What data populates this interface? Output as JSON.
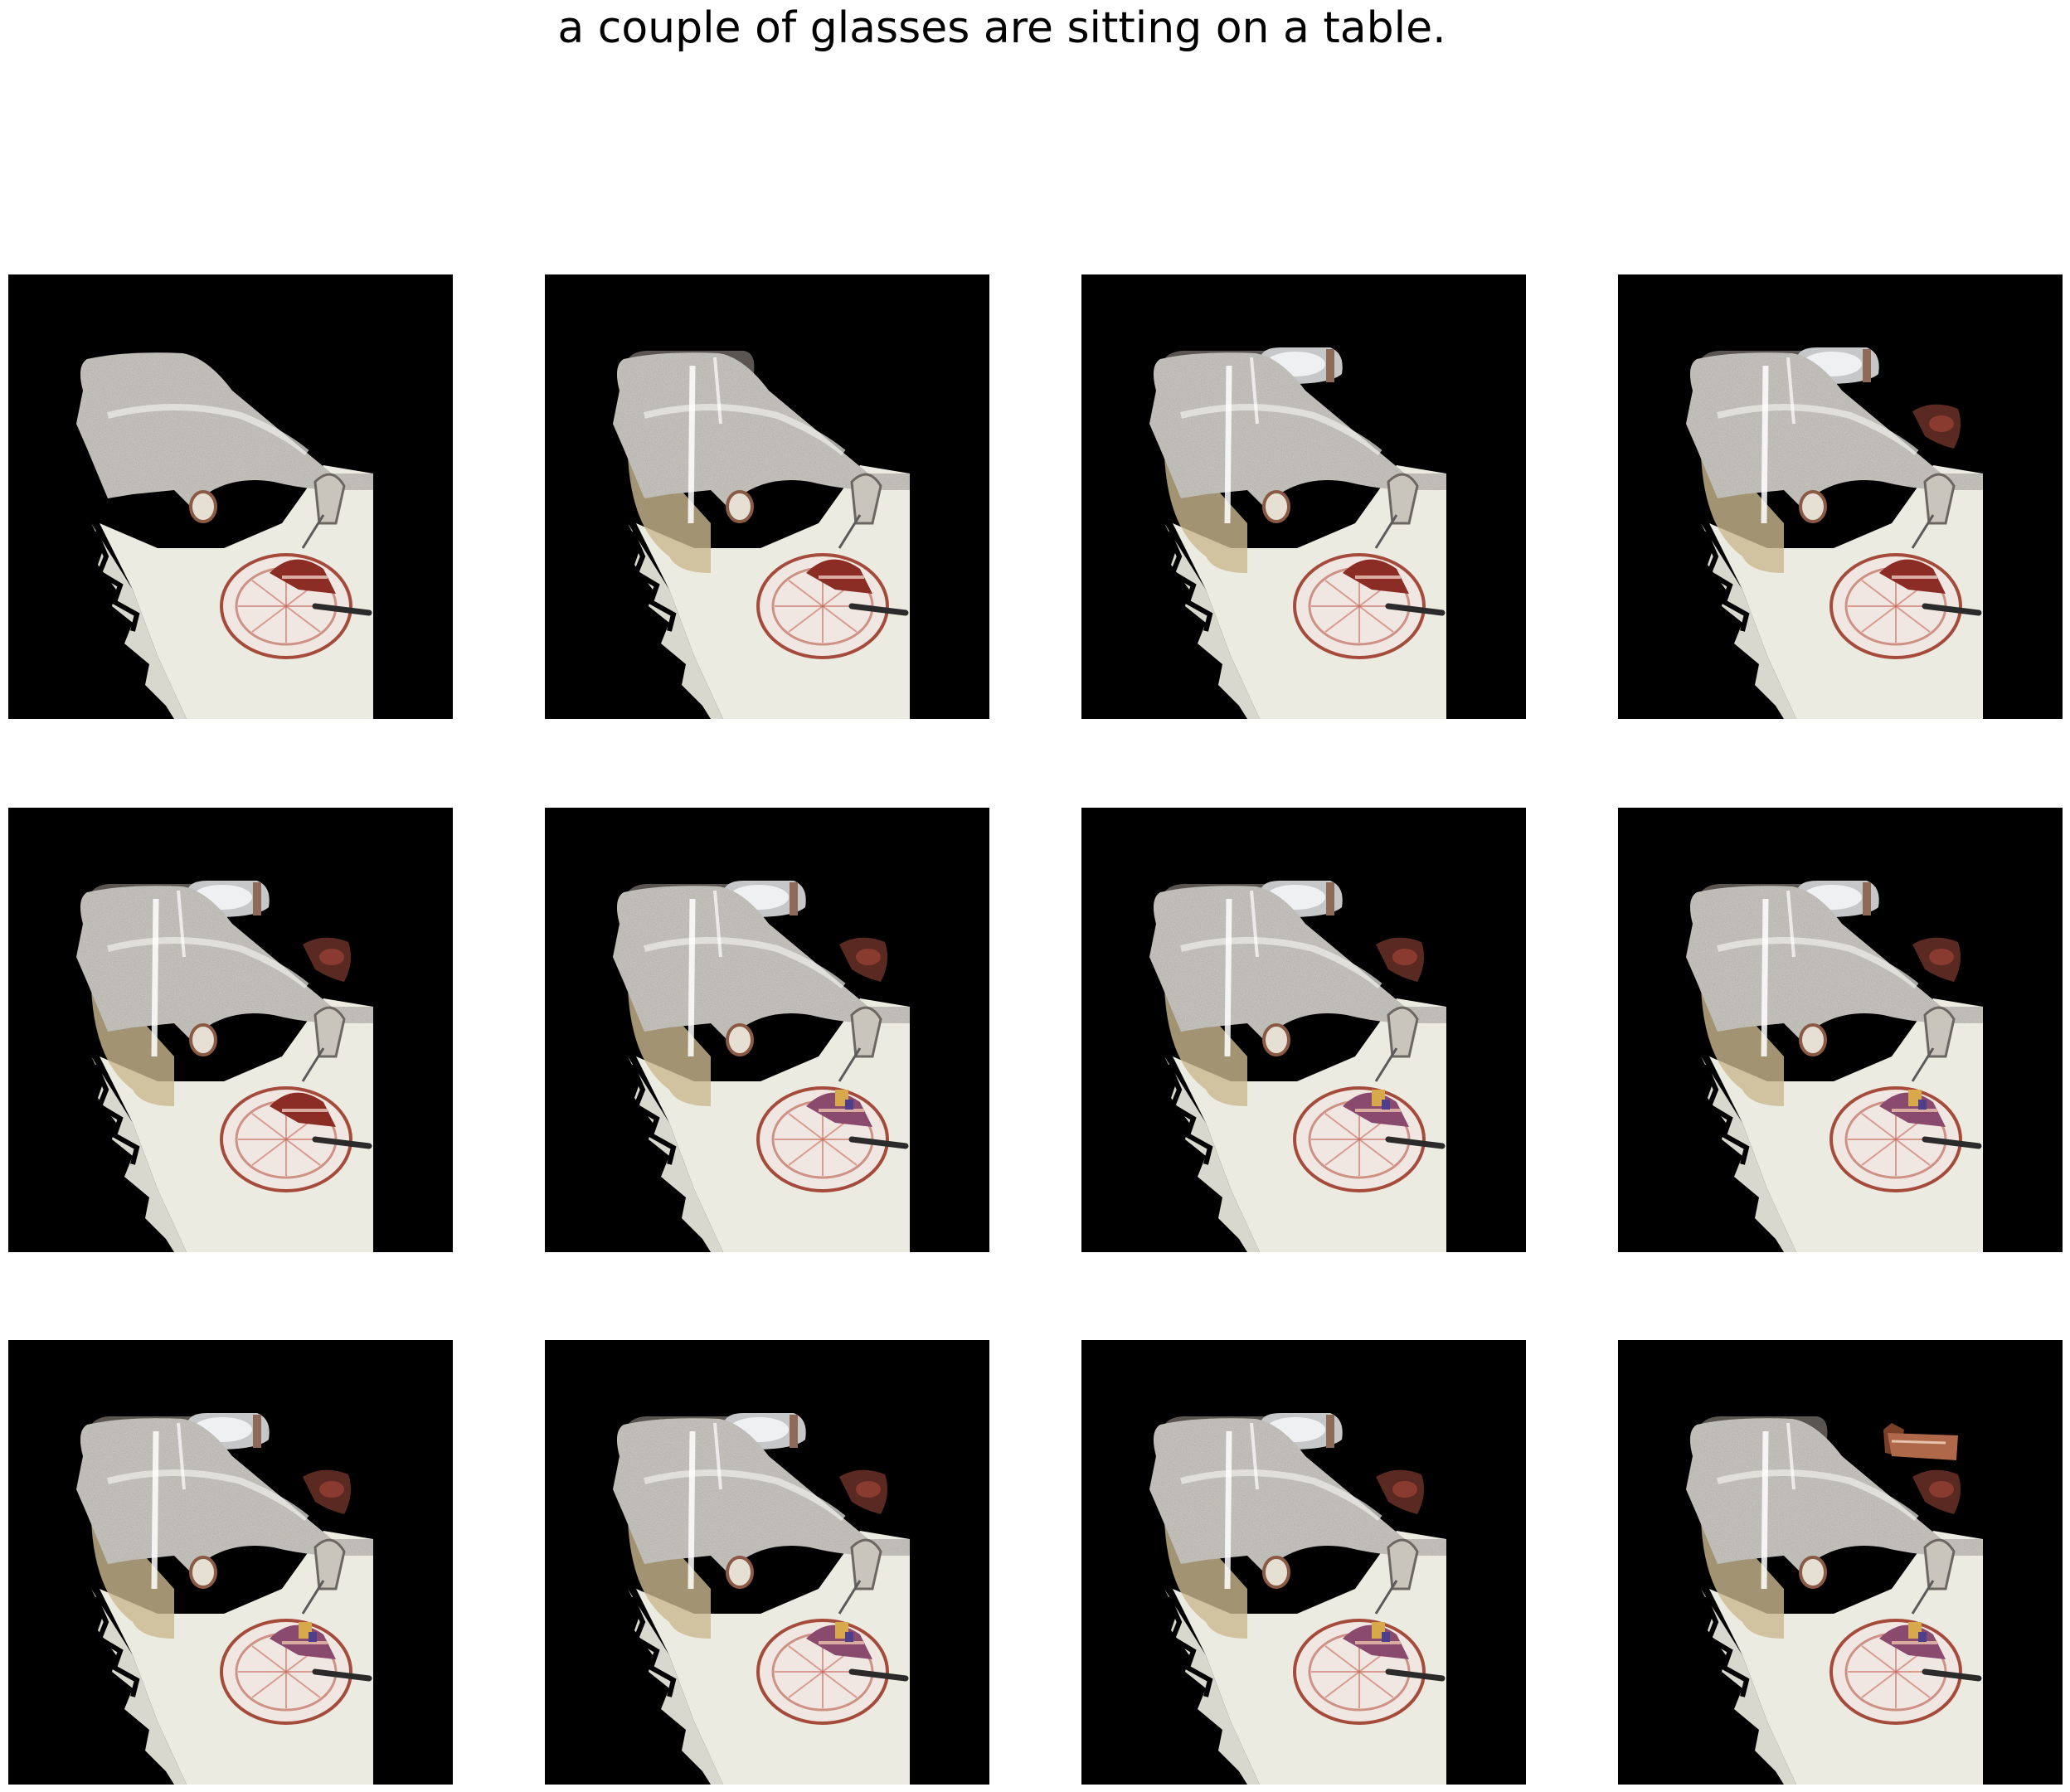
{
  "figure": {
    "caption": "a couple of glasses are sitting on a table."
  },
  "grid": {
    "rows": 3,
    "columns": 4,
    "panel_background": "#000000",
    "page_background": "#ffffff"
  },
  "panels": [
    {
      "glass": false,
      "cup": false,
      "dish": false,
      "sticker": false,
      "note": false
    },
    {
      "glass": true,
      "cup": false,
      "dish": false,
      "sticker": false,
      "note": false
    },
    {
      "glass": true,
      "cup": true,
      "dish": false,
      "sticker": false,
      "note": false
    },
    {
      "glass": true,
      "cup": true,
      "dish": true,
      "sticker": false,
      "note": false
    },
    {
      "glass": true,
      "cup": true,
      "dish": true,
      "sticker": false,
      "note": false
    },
    {
      "glass": true,
      "cup": true,
      "dish": true,
      "sticker": true,
      "note": false
    },
    {
      "glass": true,
      "cup": true,
      "dish": true,
      "sticker": true,
      "note": false
    },
    {
      "glass": true,
      "cup": true,
      "dish": true,
      "sticker": true,
      "note": false
    },
    {
      "glass": true,
      "cup": true,
      "dish": true,
      "sticker": true,
      "note": false
    },
    {
      "glass": true,
      "cup": true,
      "dish": true,
      "sticker": true,
      "note": false
    },
    {
      "glass": true,
      "cup": true,
      "dish": true,
      "sticker": true,
      "note": false
    },
    {
      "glass": true,
      "cup": false,
      "dish": true,
      "sticker": true,
      "note": true
    }
  ]
}
